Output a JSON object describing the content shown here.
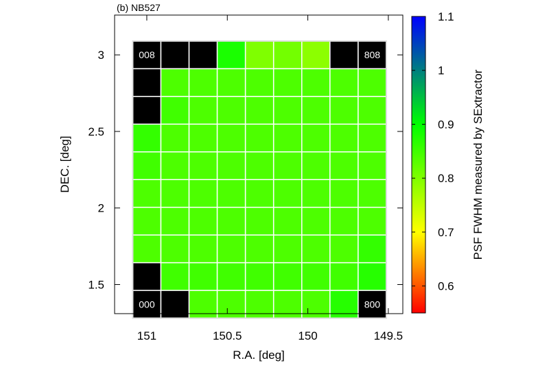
{
  "chart_data": {
    "type": "heatmap",
    "title": "(b) NB527",
    "xlabel": "R.A. [deg]",
    "ylabel": "DEC. [deg]",
    "colorbar_label": "PSF FWHM measured by SExtractor",
    "xlim": [
      151.2,
      149.41
    ],
    "ylim": [
      1.31,
      3.26
    ],
    "xticks": [
      151,
      150.5,
      150,
      149.5
    ],
    "xtick_labels": [
      "151",
      "150.5",
      "150",
      "149.5"
    ],
    "yticks": [
      1.5,
      2,
      2.5,
      3
    ],
    "ytick_labels": [
      "1.5",
      "2",
      "2.5",
      "3"
    ],
    "colorbar_range": [
      0.55,
      1.1
    ],
    "colorbar_ticks": [
      0.6,
      0.7,
      0.8,
      0.9,
      1,
      1.1
    ],
    "colorbar_tick_labels": [
      "0.6",
      "0.7",
      "0.8",
      "0.9",
      "1",
      "1.1"
    ],
    "colormap_stops": [
      {
        "value": 0.55,
        "color": "#ff0000"
      },
      {
        "value": 0.7,
        "color": "#ffff00"
      },
      {
        "value": 0.9,
        "color": "#00ff00"
      },
      {
        "value": 1.1,
        "color": "#0000ff"
      }
    ],
    "missing_color": "#000000",
    "grid_color": "#ffffff",
    "cell_width_deg": 0.175,
    "cell_height_deg": 0.181,
    "ra_centers": [
      151.0,
      150.825,
      150.65,
      150.475,
      150.3,
      150.125,
      149.95,
      149.775,
      149.6
    ],
    "dec_centers": [
      3.0,
      2.819,
      2.638,
      2.457,
      2.276,
      2.095,
      1.914,
      1.733,
      1.552,
      1.371
    ],
    "rows": [
      [
        null,
        null,
        null,
        0.88,
        0.8,
        0.81,
        0.79,
        null,
        null
      ],
      [
        null,
        0.84,
        0.84,
        0.84,
        0.84,
        0.84,
        0.84,
        0.84,
        0.84
      ],
      [
        null,
        0.85,
        0.84,
        0.84,
        0.84,
        0.84,
        0.84,
        0.84,
        0.84
      ],
      [
        0.86,
        0.84,
        0.84,
        0.84,
        0.84,
        0.84,
        0.84,
        0.84,
        0.84
      ],
      [
        0.85,
        0.84,
        0.84,
        0.84,
        0.84,
        0.84,
        0.84,
        0.84,
        0.84
      ],
      [
        0.84,
        0.84,
        0.84,
        0.84,
        0.84,
        0.84,
        0.84,
        0.84,
        0.84
      ],
      [
        0.84,
        0.84,
        0.84,
        0.84,
        0.84,
        0.84,
        0.84,
        0.84,
        0.84
      ],
      [
        0.84,
        0.84,
        0.84,
        0.84,
        0.84,
        0.84,
        0.84,
        0.84,
        0.86
      ],
      [
        null,
        0.85,
        0.85,
        0.85,
        0.85,
        0.85,
        0.85,
        0.85,
        0.87
      ],
      [
        null,
        null,
        0.84,
        0.84,
        0.84,
        0.84,
        0.84,
        0.87,
        null
      ]
    ],
    "cell_labels": [
      {
        "row": 0,
        "col": 0,
        "text": "008"
      },
      {
        "row": 0,
        "col": 8,
        "text": "808"
      },
      {
        "row": 9,
        "col": 0,
        "text": "000"
      },
      {
        "row": 9,
        "col": 8,
        "text": "800"
      }
    ]
  }
}
